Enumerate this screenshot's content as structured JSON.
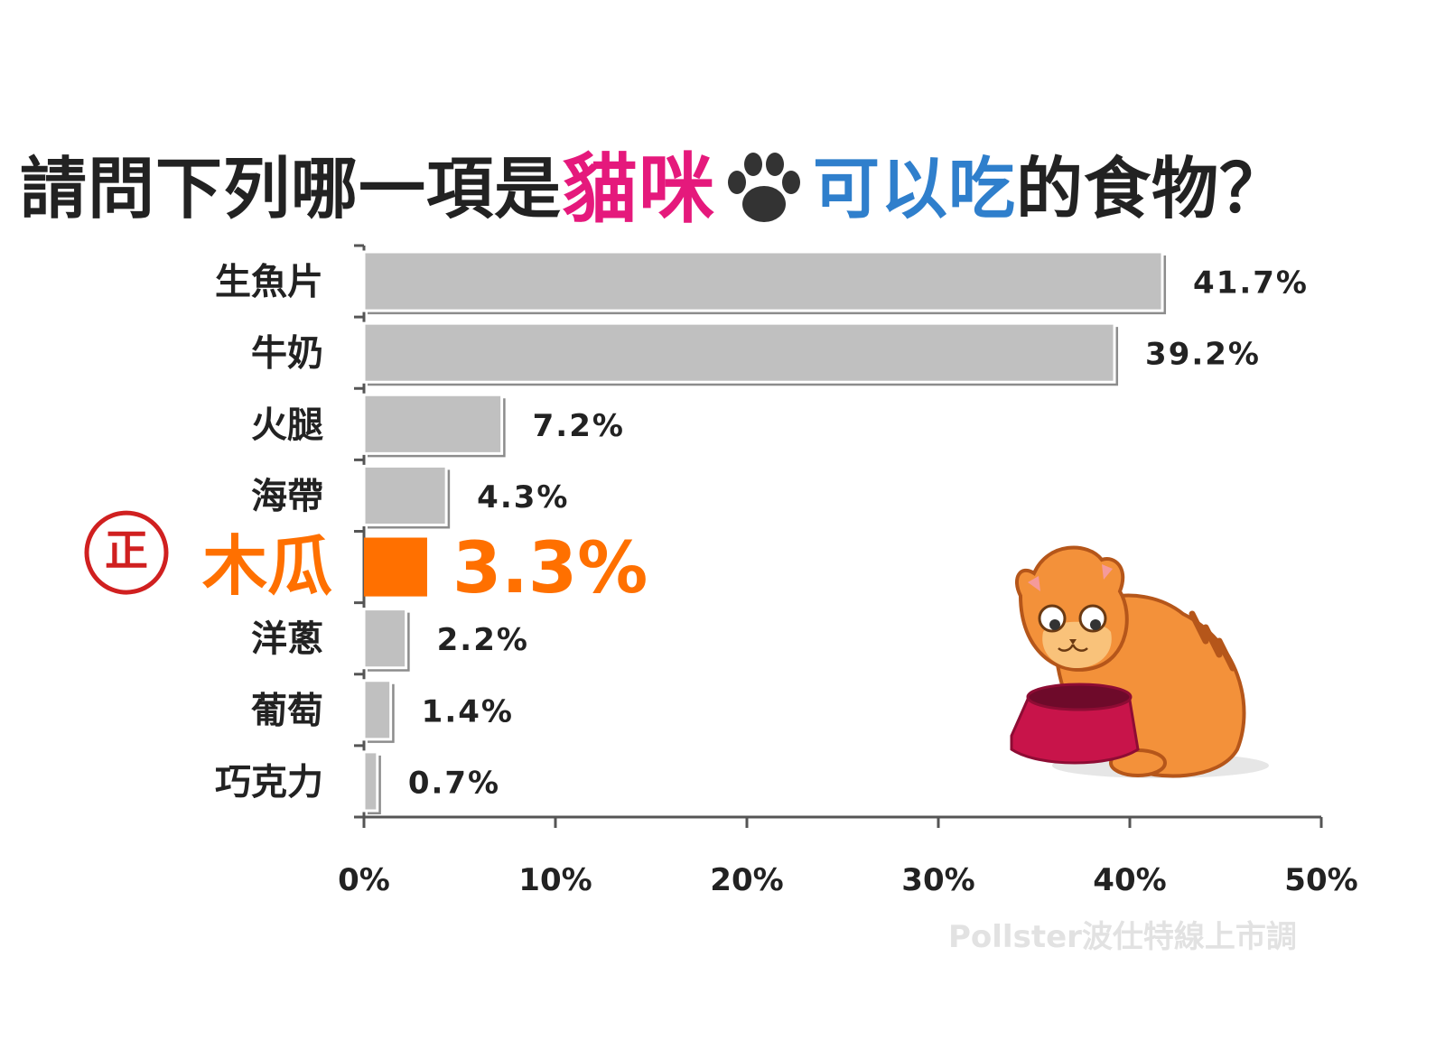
{
  "title": {
    "part1": "請問下列哪一項是",
    "part2": "貓咪",
    "part3": "可以吃",
    "part4": "的食物？",
    "paw_icon": "paw-icon",
    "color_dark": "#222222",
    "color_pink": "#e5197c",
    "color_blue": "#2f7fcc"
  },
  "chart_data": {
    "type": "bar",
    "orientation": "horizontal",
    "title": "請問下列哪一項是貓咪可以吃的食物？",
    "categories": [
      "生魚片",
      "牛奶",
      "火腿",
      "海帶",
      "木瓜",
      "洋蔥",
      "葡萄",
      "巧克力"
    ],
    "values": [
      41.7,
      39.2,
      7.2,
      4.3,
      3.3,
      2.2,
      1.4,
      0.7
    ],
    "value_labels": [
      "41.7%",
      "39.2%",
      "7.2%",
      "4.3%",
      "3.3%",
      "2.2%",
      "1.4%",
      "0.7%"
    ],
    "highlight_index": 4,
    "highlight_mark": "正",
    "xlim": [
      0,
      50
    ],
    "xticks": [
      0,
      10,
      20,
      30,
      40,
      50
    ],
    "xtick_labels": [
      "0%",
      "10%",
      "20%",
      "30%",
      "40%",
      "50%"
    ],
    "xlabel": "",
    "ylabel": "",
    "grid": false,
    "bar_color": "#c0c0c0",
    "highlight_color": "#ff7000",
    "label_color": "#222222"
  },
  "watermark": "Pollster波仕特線上市調",
  "illustration": "cat-with-bowl-illustration"
}
